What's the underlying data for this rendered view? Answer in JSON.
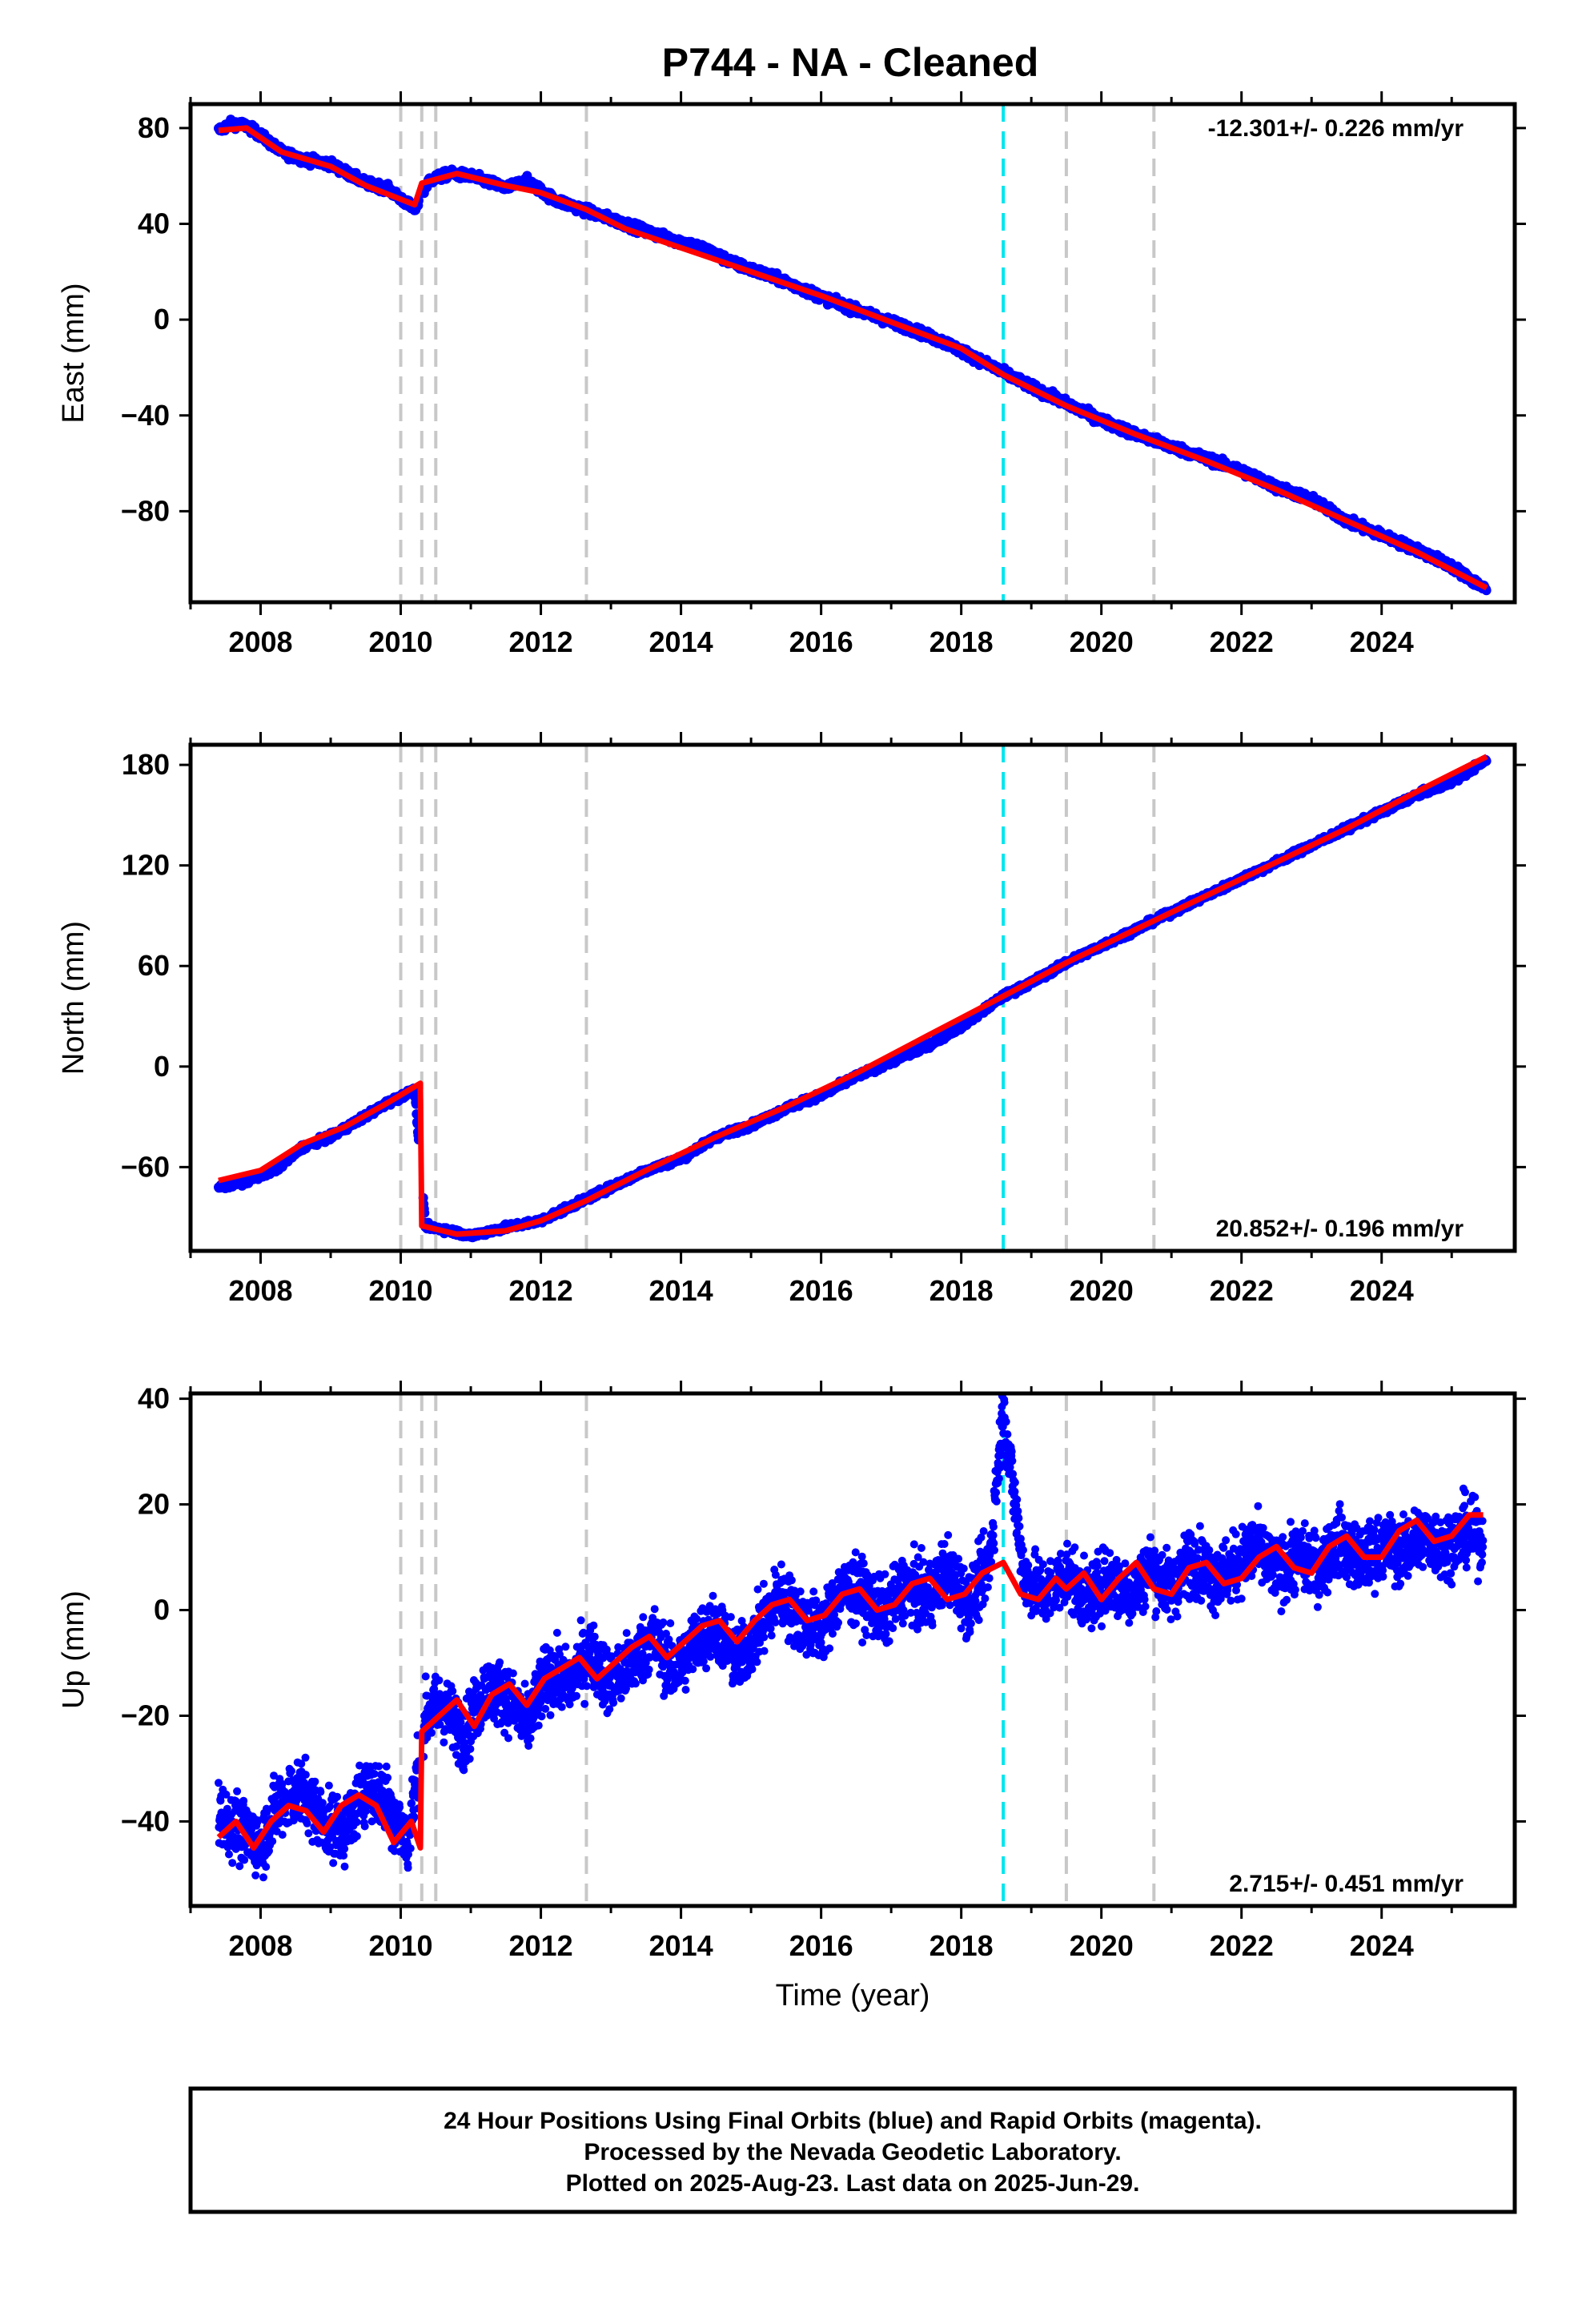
{
  "title": "P744  - NA - Cleaned",
  "footer": {
    "lines": [
      "24 Hour Positions Using Final Orbits (blue) and Rapid Orbits (magenta).",
      "Processed by the Nevada Geodetic Laboratory.",
      "Plotted on 2025-Aug-23. Last data on 2025-Jun-29."
    ]
  },
  "colors": {
    "data_points": "#0000ff",
    "model_fit": "#ff0000",
    "equipment_change_lines": "#c8c8c8",
    "event_line": "#00e5ee",
    "frame": "#000000"
  },
  "chart_data": [
    {
      "type": "scatter",
      "panel": "east",
      "ylabel": "East (mm)",
      "xlabel": "",
      "xlim": [
        2007.0,
        2025.9
      ],
      "ylim": [
        -118,
        90
      ],
      "yticks": [
        80,
        40,
        0,
        -40,
        -80
      ],
      "xticks": [
        2008,
        2010,
        2012,
        2014,
        2016,
        2018,
        2020,
        2022,
        2024
      ],
      "rate_label": "-12.301+/- 0.226 mm/yr",
      "rate_position": "top-right",
      "grey_dashed_lines_x": [
        2010.0,
        2010.3,
        2010.5,
        2012.65,
        2019.5,
        2020.75
      ],
      "cyan_dashed_line_x": 2018.6,
      "series": [
        {
          "role": "daily positions",
          "color": "#0000ff",
          "x": [
            2007.4,
            2007.6,
            2007.8,
            2008.0,
            2008.3,
            2008.6,
            2009.0,
            2009.5,
            2009.8,
            2010.2,
            2010.4,
            2010.7,
            2011.0,
            2011.5,
            2011.8,
            2012.2,
            2012.7,
            2013.2,
            2013.7,
            2014.3,
            2014.8,
            2015.3,
            2015.8,
            2016.3,
            2016.8,
            2017.3,
            2017.8,
            2018.2,
            2018.6,
            2019.0,
            2019.5,
            2020.0,
            2020.5,
            2021.0,
            2021.5,
            2022.0,
            2022.5,
            2023.0,
            2023.5,
            2024.0,
            2024.5,
            2025.0,
            2025.5
          ],
          "y": [
            79,
            82,
            81,
            77,
            70,
            67,
            65,
            57,
            55,
            46,
            58,
            61,
            60,
            55,
            58,
            50,
            45,
            40,
            35,
            30,
            23,
            18,
            12,
            6,
            1,
            -4,
            -10,
            -16,
            -22,
            -28,
            -35,
            -42,
            -48,
            -53,
            -58,
            -63,
            -70,
            -75,
            -84,
            -90,
            -96,
            -103,
            -113
          ]
        },
        {
          "role": "model fit",
          "color": "#ff0000",
          "x": [
            2007.4,
            2007.8,
            2008.3,
            2009.0,
            2009.5,
            2010.2,
            2010.3,
            2010.8,
            2011.5,
            2012.0,
            2012.65,
            2013.2,
            2014.0,
            2015.0,
            2016.0,
            2017.0,
            2018.0,
            2018.6,
            2019.5,
            2020.5,
            2021.5,
            2022.5,
            2023.5,
            2024.5,
            2025.5
          ],
          "y": [
            79,
            80,
            70,
            64,
            56,
            48,
            57,
            61,
            56,
            53,
            46,
            38,
            30,
            20,
            10,
            -1,
            -12,
            -23,
            -36,
            -48,
            -59,
            -71,
            -84,
            -97,
            -112
          ]
        }
      ]
    },
    {
      "type": "scatter",
      "panel": "north",
      "ylabel": "North (mm)",
      "xlabel": "",
      "xlim": [
        2007.0,
        2025.9
      ],
      "ylim": [
        -110,
        192
      ],
      "yticks": [
        180,
        120,
        60,
        0,
        -60
      ],
      "xticks": [
        2008,
        2010,
        2012,
        2014,
        2016,
        2018,
        2020,
        2022,
        2024
      ],
      "rate_label": "20.852+/- 0.196 mm/yr",
      "rate_position": "bottom-right",
      "grey_dashed_lines_x": [
        2010.0,
        2010.3,
        2010.5,
        2012.65,
        2019.5,
        2020.75
      ],
      "cyan_dashed_line_x": 2018.6,
      "series": [
        {
          "role": "daily positions",
          "color": "#0000ff",
          "x": [
            2007.4,
            2007.8,
            2008.2,
            2008.6,
            2009.0,
            2009.4,
            2009.8,
            2010.2,
            2010.35,
            2010.7,
            2011.0,
            2011.5,
            2012.0,
            2012.6,
            2013.0,
            2013.5,
            2014.0,
            2014.5,
            2015.0,
            2015.5,
            2016.0,
            2016.5,
            2017.0,
            2017.5,
            2018.0,
            2018.6,
            2019.0,
            2019.5,
            2020.0,
            2020.5,
            2021.0,
            2021.5,
            2022.0,
            2022.5,
            2023.0,
            2023.5,
            2024.0,
            2024.5,
            2025.0,
            2025.5
          ],
          "y": [
            -72,
            -68,
            -62,
            -48,
            -42,
            -32,
            -22,
            -14,
            -95,
            -98,
            -101,
            -96,
            -92,
            -80,
            -72,
            -62,
            -55,
            -42,
            -35,
            -25,
            -17,
            -6,
            3,
            12,
            24,
            42,
            50,
            62,
            72,
            82,
            92,
            102,
            112,
            122,
            132,
            142,
            152,
            162,
            170,
            183
          ]
        },
        {
          "role": "model fit",
          "color": "#ff0000",
          "x": [
            2007.4,
            2008.0,
            2008.6,
            2009.2,
            2009.8,
            2010.28,
            2010.3,
            2010.8,
            2011.5,
            2012.0,
            2012.65,
            2013.5,
            2014.5,
            2015.5,
            2016.5,
            2017.5,
            2018.6,
            2019.5,
            2020.5,
            2021.5,
            2022.5,
            2023.5,
            2024.5,
            2025.5
          ],
          "y": [
            -68,
            -62,
            -46,
            -36,
            -22,
            -10,
            -95,
            -100,
            -98,
            -92,
            -80,
            -62,
            -42,
            -24,
            -4,
            18,
            42,
            62,
            82,
            102,
            122,
            142,
            164,
            185
          ]
        }
      ]
    },
    {
      "type": "scatter",
      "panel": "up",
      "ylabel": "Up (mm)",
      "xlabel": "Time (year)",
      "xlim": [
        2007.0,
        2025.9
      ],
      "ylim": [
        -56,
        41
      ],
      "yticks": [
        40,
        20,
        0,
        -20,
        -40
      ],
      "xticks": [
        2008,
        2010,
        2012,
        2014,
        2016,
        2018,
        2020,
        2022,
        2024
      ],
      "rate_label": "2.715+/- 0.451 mm/yr",
      "rate_position": "bottom-right",
      "grey_dashed_lines_x": [
        2010.0,
        2010.3,
        2010.5,
        2012.65,
        2019.5,
        2020.75
      ],
      "cyan_dashed_line_x": 2018.6,
      "series": [
        {
          "role": "daily positions",
          "color": "#0000ff",
          "x": [
            2007.4,
            2007.7,
            2008.0,
            2008.3,
            2008.6,
            2008.9,
            2009.2,
            2009.5,
            2009.8,
            2010.1,
            2010.35,
            2010.6,
            2010.9,
            2011.2,
            2011.5,
            2011.8,
            2012.1,
            2012.4,
            2012.7,
            2013.0,
            2013.3,
            2013.6,
            2013.9,
            2014.2,
            2014.5,
            2014.8,
            2015.1,
            2015.4,
            2015.7,
            2016.0,
            2016.3,
            2016.6,
            2016.9,
            2017.2,
            2017.5,
            2017.8,
            2018.1,
            2018.4,
            2018.6,
            2018.9,
            2019.2,
            2019.5,
            2019.8,
            2020.1,
            2020.4,
            2020.7,
            2021.0,
            2021.3,
            2021.6,
            2021.9,
            2022.2,
            2022.5,
            2022.8,
            2023.1,
            2023.4,
            2023.7,
            2024.0,
            2024.3,
            2024.6,
            2024.9,
            2025.2,
            2025.45
          ],
          "y": [
            -38,
            -42,
            -44,
            -36,
            -34,
            -40,
            -42,
            -33,
            -36,
            -44,
            -20,
            -18,
            -24,
            -15,
            -16,
            -22,
            -12,
            -14,
            -8,
            -14,
            -10,
            -5,
            -12,
            -6,
            -3,
            -10,
            -4,
            3,
            -2,
            -4,
            4,
            3,
            -1,
            5,
            2,
            8,
            1,
            9,
            38,
            6,
            3,
            7,
            2,
            6,
            3,
            8,
            4,
            10,
            6,
            8,
            12,
            7,
            10,
            8,
            13,
            9,
            12,
            11,
            14,
            12,
            15,
            13
          ]
        },
        {
          "role": "model fit",
          "color": "#ff0000",
          "x": [
            2007.4,
            2007.65,
            2007.9,
            2008.15,
            2008.4,
            2008.65,
            2008.9,
            2009.15,
            2009.4,
            2009.65,
            2009.9,
            2010.15,
            2010.28,
            2010.3,
            2010.55,
            2010.8,
            2011.05,
            2011.3,
            2011.55,
            2011.8,
            2012.05,
            2012.3,
            2012.55,
            2012.8,
            2013.05,
            2013.3,
            2013.55,
            2013.8,
            2014.05,
            2014.3,
            2014.55,
            2014.8,
            2015.05,
            2015.3,
            2015.55,
            2015.8,
            2016.05,
            2016.3,
            2016.55,
            2016.8,
            2017.05,
            2017.3,
            2017.55,
            2017.8,
            2018.05,
            2018.3,
            2018.6,
            2018.85,
            2019.1,
            2019.35,
            2019.5,
            2019.75,
            2020.0,
            2020.25,
            2020.5,
            2020.75,
            2021.0,
            2021.25,
            2021.5,
            2021.75,
            2022.0,
            2022.25,
            2022.5,
            2022.75,
            2023.0,
            2023.25,
            2023.5,
            2023.75,
            2024.0,
            2024.25,
            2024.5,
            2024.75,
            2025.0,
            2025.25,
            2025.45
          ],
          "y": [
            -43,
            -40,
            -45,
            -40,
            -37,
            -38,
            -42,
            -37,
            -35,
            -37,
            -44,
            -40,
            -45,
            -23,
            -20,
            -17,
            -22,
            -16,
            -14,
            -18,
            -13,
            -11,
            -9,
            -13,
            -10,
            -7,
            -5,
            -9,
            -6,
            -3,
            -2,
            -6,
            -2,
            1,
            2,
            -2,
            -1,
            3,
            4,
            0,
            1,
            5,
            6,
            2,
            3,
            7,
            9,
            3,
            2,
            6,
            4,
            7,
            2,
            6,
            9,
            4,
            3,
            8,
            9,
            5,
            6,
            10,
            12,
            8,
            7,
            12,
            14,
            10,
            10,
            15,
            17,
            13,
            14,
            18,
            18
          ]
        }
      ]
    }
  ]
}
